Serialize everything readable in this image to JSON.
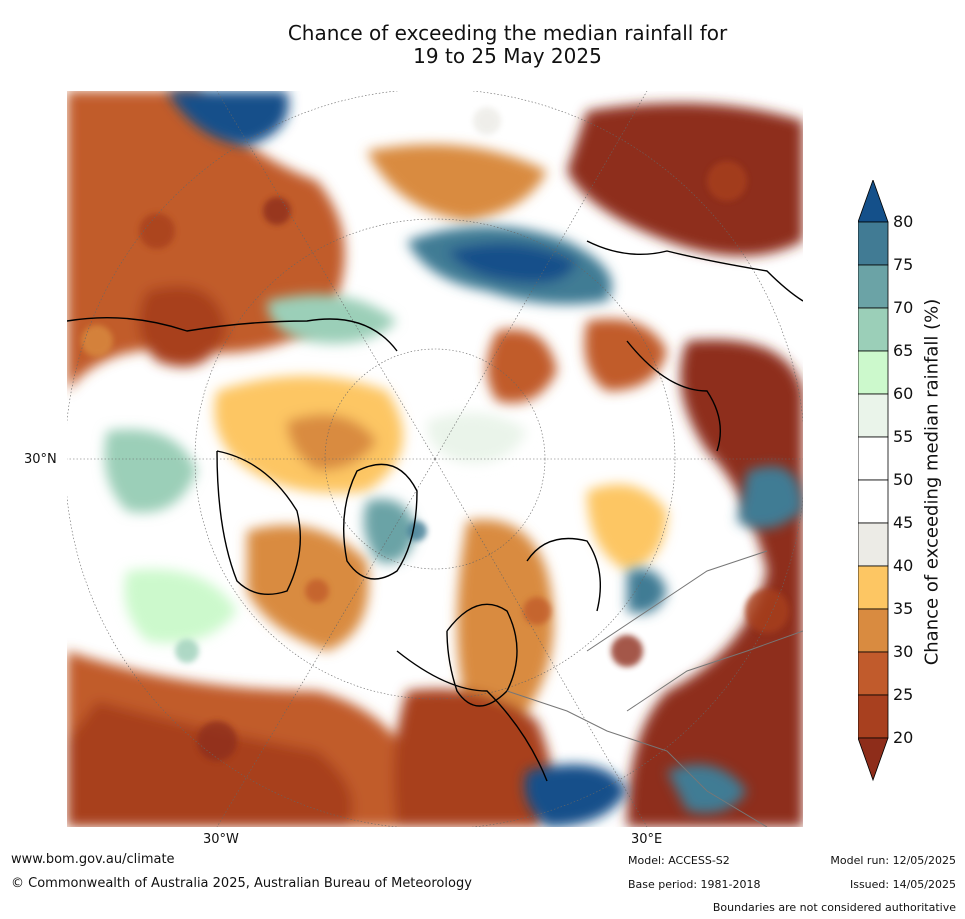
{
  "title_line1": "Chance of exceeding the median rainfall for",
  "title_line2": "19 to 25 May 2025",
  "axis_labels": {
    "lon_west": "30°W",
    "lon_east": "30°E",
    "lat": "30°N"
  },
  "colorbar": {
    "title": "Chance of exceeding median rainfall (%)",
    "ticks": [
      "20",
      "25",
      "30",
      "35",
      "40",
      "45",
      "50",
      "55",
      "60",
      "65",
      "70",
      "75",
      "80"
    ],
    "colors": {
      "below20": "#8e2d1a",
      "20-25": "#a8401f",
      "25-30": "#c15b2c",
      "30-35": "#d98b40",
      "35-40": "#fdc663",
      "40-45": "#ecebe6",
      "45-50": "#ffffff",
      "50-55": "#ffffff",
      "55-60": "#eaf4ea",
      "60-65": "#ccf9cc",
      "65-70": "#9bcfb8",
      "70-75": "#6ba3a6",
      "75-80": "#417b94",
      "above80": "#14508a"
    }
  },
  "footer": {
    "website": "www.bom.gov.au/climate",
    "copyright": "© Commonwealth of Australia 2025, Australian Bureau of Meteorology",
    "model": "Model: ACCESS-S2",
    "base_period": "Base period: 1981-2018",
    "model_run": "Model run: 12/05/2025",
    "issued": "Issued: 14/05/2025",
    "disclaimer": "Boundaries are not considered authoritative"
  }
}
